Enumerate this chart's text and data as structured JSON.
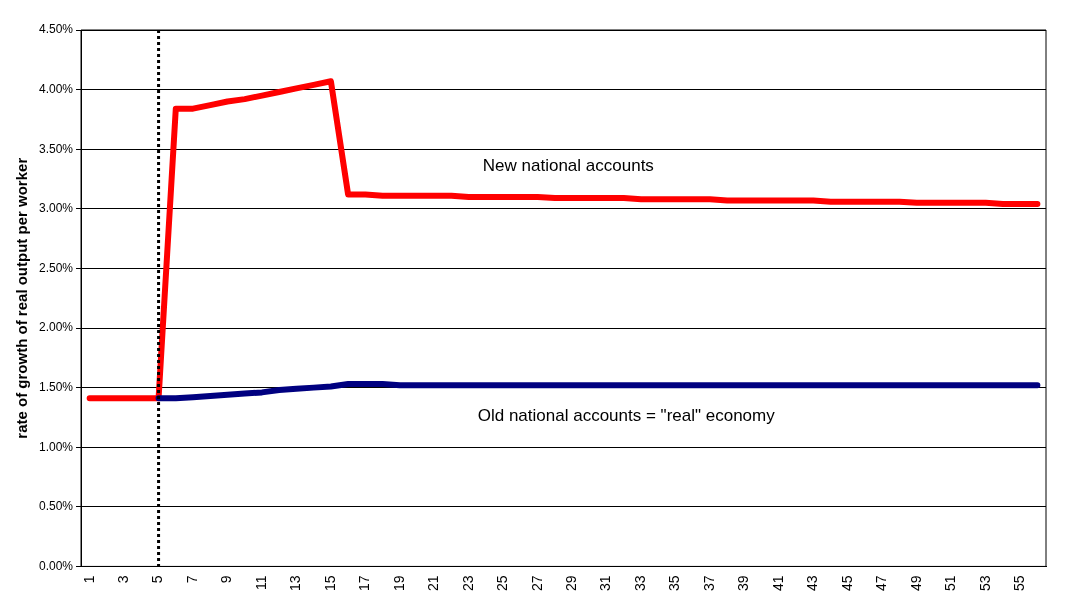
{
  "chart_data": {
    "type": "line",
    "ylabel": "rate of growth of real output per worker",
    "categories": [
      "1",
      null,
      "3",
      null,
      "5",
      null,
      "7",
      null,
      "9",
      null,
      "11",
      null,
      "13",
      null,
      "15",
      null,
      "17",
      null,
      "19",
      null,
      "21",
      null,
      "23",
      null,
      "25",
      null,
      "27",
      null,
      "29",
      null,
      "31",
      null,
      "33",
      null,
      "35",
      null,
      "37",
      null,
      "39",
      null,
      "41",
      null,
      "43",
      null,
      "45",
      null,
      "47",
      null,
      "49",
      null,
      "51",
      null,
      "53",
      null,
      "55",
      null
    ],
    "series": [
      {
        "color": "#000080",
        "values": [
          null,
          null,
          null,
          null,
          1.41,
          1.41,
          1.42,
          1.43,
          1.44,
          1.45,
          1.46,
          1.48,
          1.49,
          1.5,
          1.51,
          1.53,
          1.53,
          1.53,
          1.52,
          1.52,
          1.52,
          1.52,
          1.52,
          1.52,
          1.52,
          1.52,
          1.52,
          1.52,
          1.52,
          1.52,
          1.52,
          1.52,
          1.52,
          1.52,
          1.52,
          1.52,
          1.52,
          1.52,
          1.52,
          1.52,
          1.52,
          1.52,
          1.52,
          1.52,
          1.52,
          1.52,
          1.52,
          1.52,
          1.52,
          1.52,
          1.52,
          1.52,
          1.52,
          1.52,
          1.52,
          1.52
        ]
      },
      {
        "color": "#ff0000",
        "values": [
          1.41,
          1.41,
          1.41,
          1.41,
          1.41,
          3.84,
          3.84,
          3.87,
          3.9,
          3.92,
          3.95,
          3.98,
          4.01,
          4.04,
          4.07,
          3.12,
          3.12,
          3.11,
          3.11,
          3.11,
          3.11,
          3.11,
          3.1,
          3.1,
          3.1,
          3.1,
          3.1,
          3.09,
          3.09,
          3.09,
          3.09,
          3.09,
          3.08,
          3.08,
          3.08,
          3.08,
          3.08,
          3.07,
          3.07,
          3.07,
          3.07,
          3.07,
          3.07,
          3.06,
          3.06,
          3.06,
          3.06,
          3.06,
          3.05,
          3.05,
          3.05,
          3.05,
          3.05,
          3.04,
          3.04,
          3.04
        ]
      }
    ],
    "ylim": [
      0,
      4.5
    ],
    "yticks": [
      {
        "value": 0,
        "label": "0.00%"
      },
      {
        "value": 0.5,
        "label": "0.50%"
      },
      {
        "value": 1,
        "label": "1.00%"
      },
      {
        "value": 1.5,
        "label": "1.50%"
      },
      {
        "value": 2,
        "label": "2.00%"
      },
      {
        "value": 2.5,
        "label": "2.50%"
      },
      {
        "value": 3,
        "label": "3.00%"
      },
      {
        "value": 3.5,
        "label": "3.50%"
      },
      {
        "value": 4,
        "label": "4.00%"
      },
      {
        "value": 4.5,
        "label": "4.50%"
      }
    ],
    "grid": "y",
    "legend": false,
    "marker": "none",
    "line_style": "solid",
    "ref_lines": [
      {
        "axis": "x",
        "value": "5",
        "color": "#000000",
        "line_style": "dotted"
      }
    ],
    "annotations": [
      "New national accounts",
      "Old national accounts = \"real\" economy"
    ]
  }
}
